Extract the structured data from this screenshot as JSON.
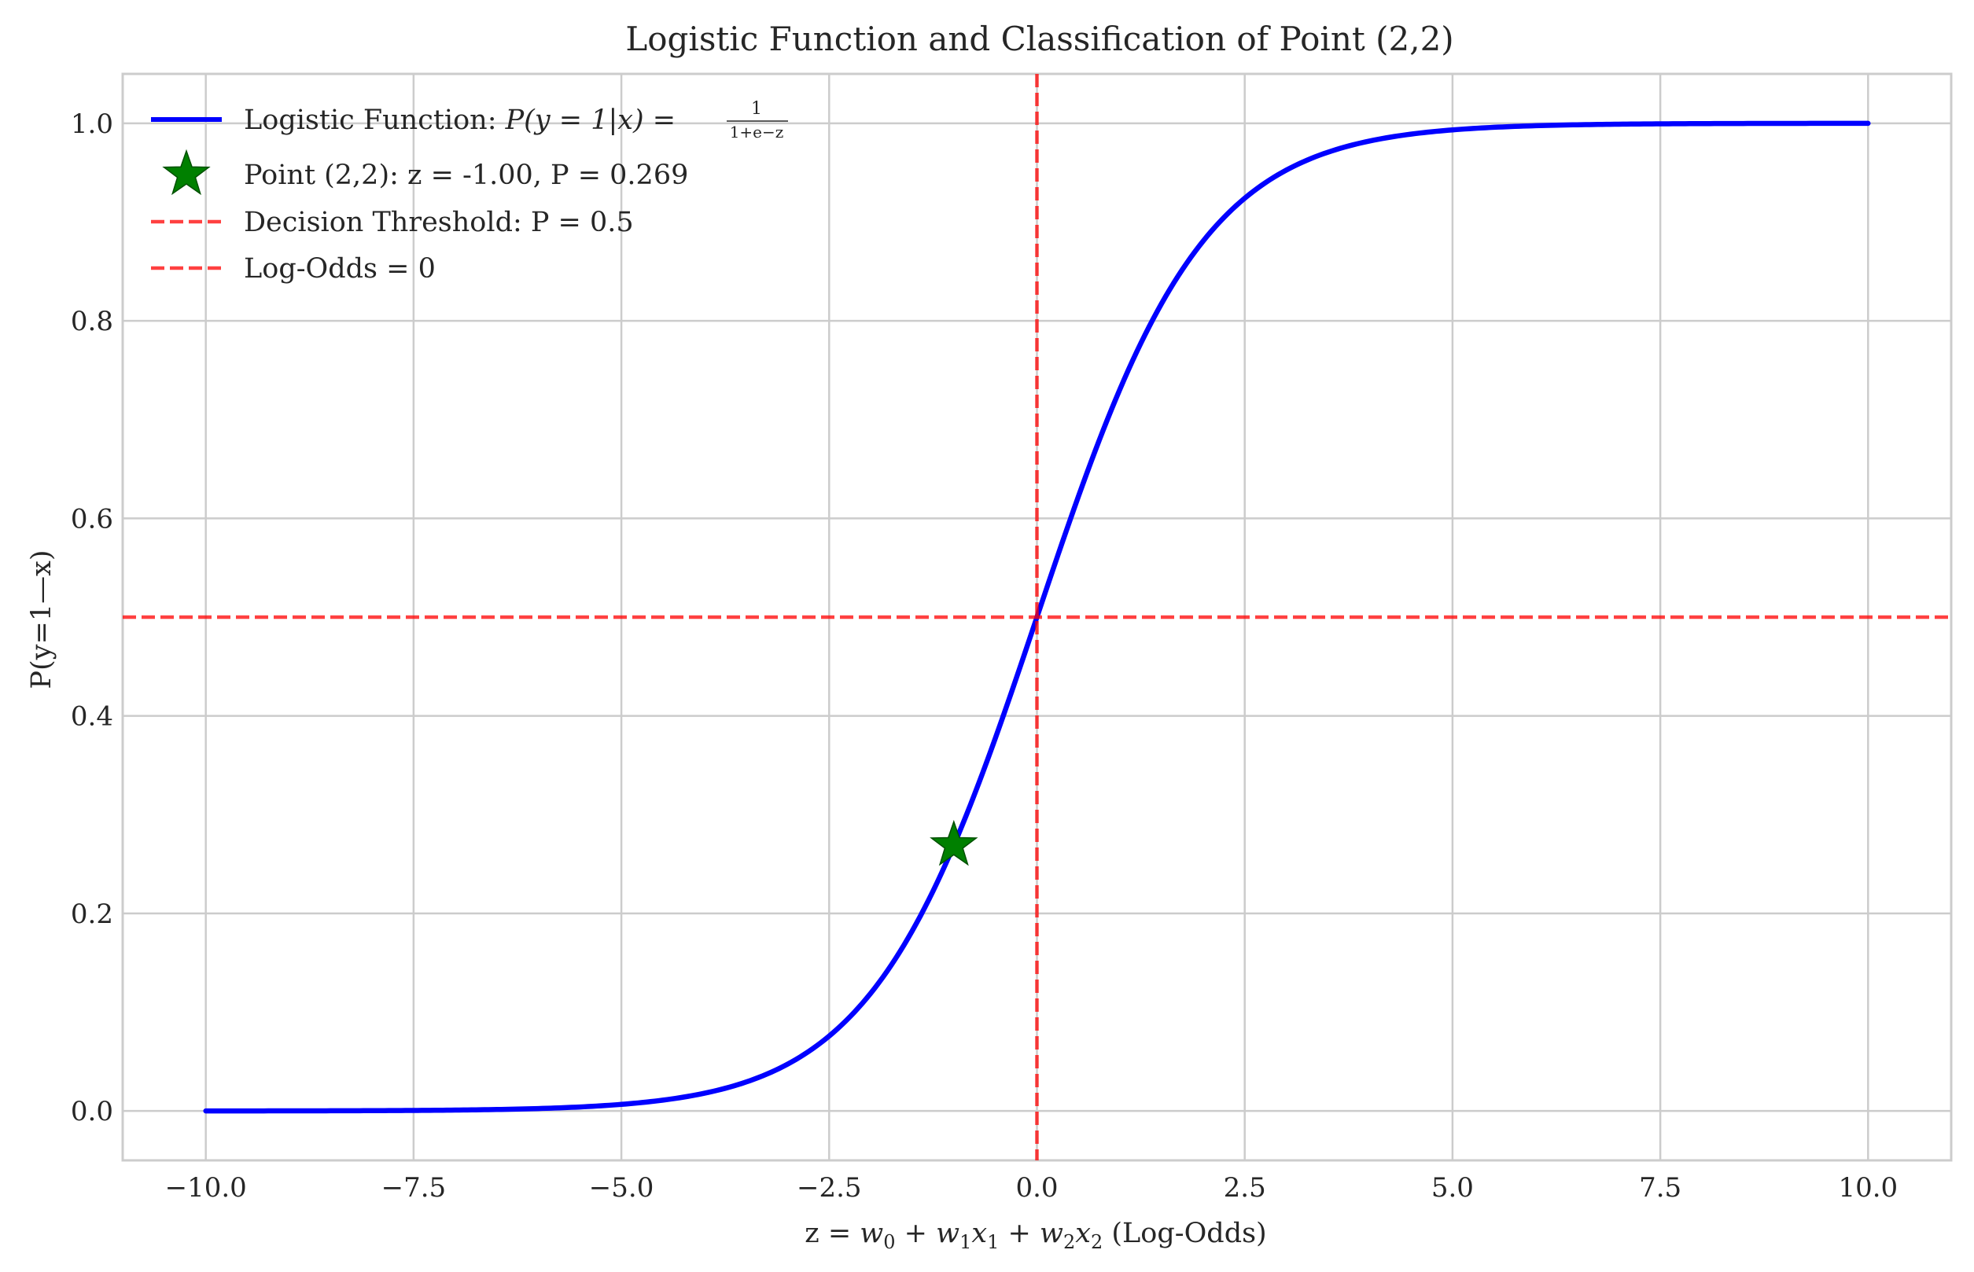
{
  "chart_data": {
    "type": "line",
    "title": "Logistic Function and Classification of Point (2,2)",
    "xlabel": "z = w0 + w1x1 + w2x2 (Log-Odds)",
    "ylabel": "P(y=1—x)",
    "xlim": [
      -11,
      11
    ],
    "ylim": [
      -0.05,
      1.05
    ],
    "x_ticks": [
      -10.0,
      -7.5,
      -5.0,
      -2.5,
      0.0,
      2.5,
      5.0,
      7.5,
      10.0
    ],
    "x_tick_labels": [
      "−10.0",
      "−7.5",
      "−5.0",
      "−2.5",
      "0.0",
      "2.5",
      "5.0",
      "7.5",
      "10.0"
    ],
    "y_ticks": [
      0.0,
      0.2,
      0.4,
      0.6,
      0.8,
      1.0
    ],
    "y_tick_labels": [
      "0.0",
      "0.2",
      "0.4",
      "0.6",
      "0.8",
      "1.0"
    ],
    "grid": true,
    "legend_position": "top-left",
    "series": [
      {
        "name": "Logistic Function: P(y = 1|x) = 1/(1+e^−z)",
        "kind": "line",
        "function": "logistic",
        "x_range": [
          -10,
          10
        ],
        "color": "#0000ff"
      },
      {
        "name": "Point (2,2): z = -1.00, P = 0.269",
        "kind": "marker",
        "marker": "star",
        "x": -1.0,
        "y": 0.269,
        "color": "#008000"
      },
      {
        "name": "Decision Threshold: P = 0.5",
        "kind": "hline",
        "y": 0.5,
        "style": "dashed",
        "color": "#ff0000"
      },
      {
        "name": "Log-Odds = 0",
        "kind": "vline",
        "x": 0.0,
        "style": "dashed",
        "color": "#ff0000"
      }
    ],
    "legend": {
      "logistic_prefix": "Logistic Function: ",
      "logistic_formula_lhs": "P(y = 1|x) = ",
      "logistic_formula_num": "1",
      "logistic_formula_den": "1+e−z",
      "point_label": "Point (2,2): z = -1.00, P = 0.269",
      "threshold_label": "Decision Threshold: P = 0.5",
      "logodds_label": "Log-Odds = 0"
    },
    "xlabel_parts": {
      "prefix": "z = ",
      "math": "w0 + w1x1 + w2x2",
      "suffix": " (Log-Odds)"
    }
  }
}
